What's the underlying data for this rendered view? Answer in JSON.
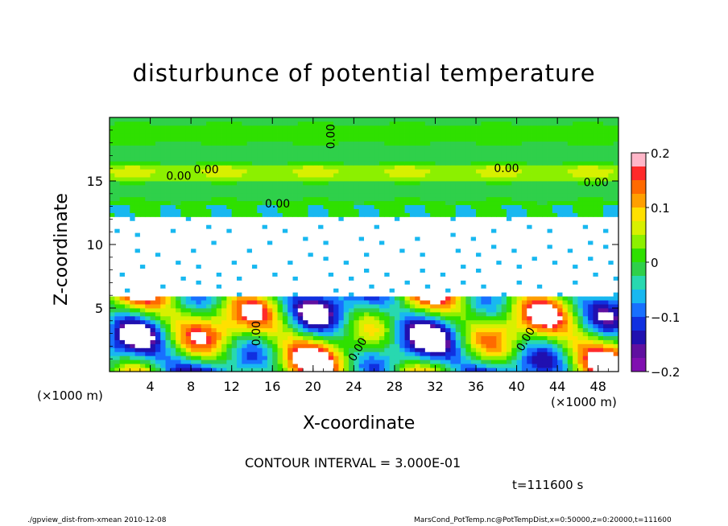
{
  "chart_data": {
    "type": "heatmap",
    "title": "disturbunce of potential temperature",
    "xlabel": "X-coordinate",
    "ylabel": "Z-coordinate",
    "x_unit_left": "(×1000 m)",
    "x_unit_right": "(×1000 m)",
    "xlim": [
      0,
      50
    ],
    "ylim": [
      0,
      20
    ],
    "x_ticks": [
      4,
      8,
      12,
      16,
      20,
      24,
      28,
      32,
      36,
      40,
      44,
      48
    ],
    "y_ticks": [
      5,
      10,
      15
    ],
    "colorbar": {
      "range": [
        -0.2,
        0.2
      ],
      "tick_values": [
        0.2,
        0.1,
        0,
        -0.1,
        -0.2
      ],
      "tick_labels": [
        "0.2",
        "0.1",
        "0",
        "−0.1",
        "−0.2"
      ],
      "colors": [
        "#ffb6c8",
        "#ff2a2a",
        "#ff6a00",
        "#ff9f00",
        "#ffe000",
        "#d8f000",
        "#8cf000",
        "#2fe000",
        "#2fd04a",
        "#28d8b0",
        "#18b8f0",
        "#1870ff",
        "#1030e0",
        "#2010b0",
        "#6010a0",
        "#8010b0"
      ]
    },
    "contour_labels": [
      "0.00",
      "0.00",
      "0.00",
      "0.00",
      "0.00",
      "0.00",
      "0.00",
      "0.00",
      "0.00"
    ],
    "contour_interval": "CONTOUR INTERVAL = 3.000E-01",
    "time": "t=111600 s"
  },
  "footer": {
    "left": "./gpview_dist-from-xmean   2010-12-08",
    "right": "MarsCond_PotTemp.nc@PotTempDist,x=0:50000,z=0:20000,t=111600"
  }
}
